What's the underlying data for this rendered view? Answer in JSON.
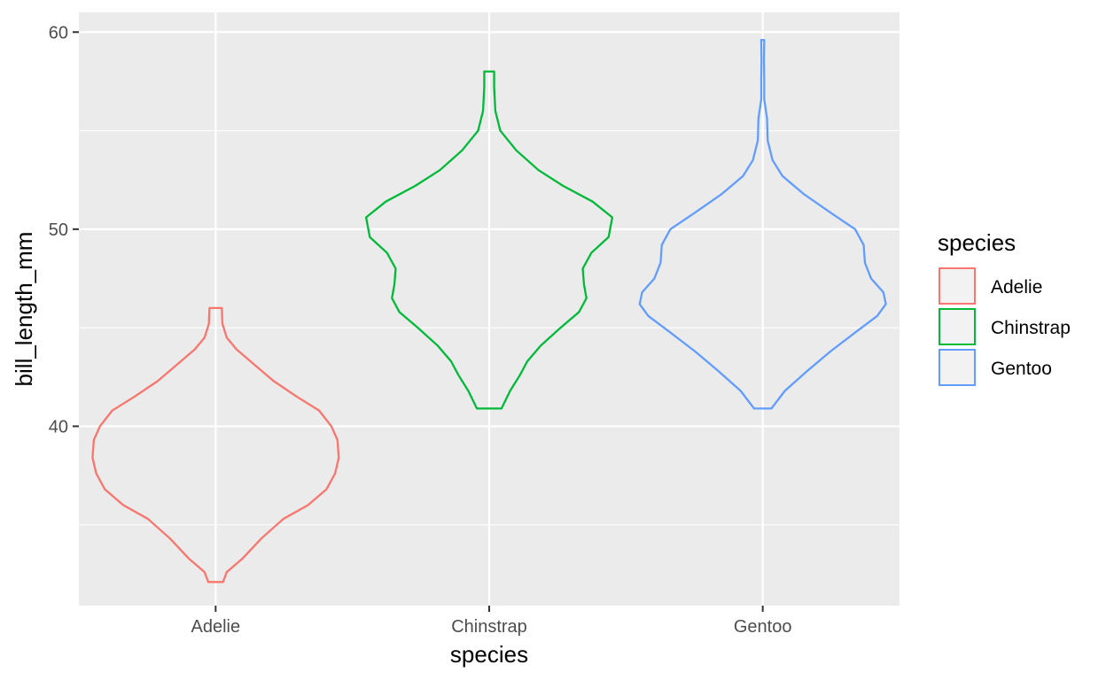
{
  "chart_data": {
    "type": "violin",
    "title": "",
    "xlabel": "species",
    "ylabel": "bill_length_mm",
    "categories": [
      "Adelie",
      "Chinstrap",
      "Gentoo"
    ],
    "ylim": [
      30.9,
      61.0
    ],
    "yticks": [
      40,
      50,
      60
    ],
    "y_tick_labels": [
      "40",
      "50",
      "60"
    ],
    "grid": true,
    "legend": {
      "title": "species",
      "placement": "right",
      "entries": [
        "Adelie",
        "Chinstrap",
        "Gentoo"
      ]
    },
    "colors": {
      "Adelie": "#F8766D",
      "Chinstrap": "#00BA38",
      "Gentoo": "#619CFF"
    },
    "series": [
      {
        "name": "Adelie",
        "range": [
          32.1,
          46.0
        ],
        "profile": [
          [
            32.1,
            0.06
          ],
          [
            32.6,
            0.09
          ],
          [
            33.3,
            0.22
          ],
          [
            34.3,
            0.37
          ],
          [
            35.3,
            0.55
          ],
          [
            36.0,
            0.75
          ],
          [
            36.8,
            0.9
          ],
          [
            37.6,
            0.97
          ],
          [
            38.4,
            1.0
          ],
          [
            39.3,
            0.99
          ],
          [
            40.0,
            0.94
          ],
          [
            40.8,
            0.84
          ],
          [
            41.5,
            0.66
          ],
          [
            42.3,
            0.47
          ],
          [
            43.1,
            0.32
          ],
          [
            43.9,
            0.17
          ],
          [
            44.5,
            0.09
          ],
          [
            45.2,
            0.055
          ],
          [
            46.0,
            0.05
          ]
        ]
      },
      {
        "name": "Chinstrap",
        "range": [
          40.9,
          58.0
        ],
        "profile": [
          [
            40.9,
            0.1
          ],
          [
            41.8,
            0.17
          ],
          [
            42.6,
            0.25
          ],
          [
            43.3,
            0.31
          ],
          [
            44.1,
            0.42
          ],
          [
            45.0,
            0.58
          ],
          [
            45.8,
            0.73
          ],
          [
            46.5,
            0.79
          ],
          [
            47.2,
            0.77
          ],
          [
            48.0,
            0.76
          ],
          [
            48.8,
            0.83
          ],
          [
            49.6,
            0.97
          ],
          [
            50.6,
            1.0
          ],
          [
            51.4,
            0.84
          ],
          [
            52.2,
            0.6
          ],
          [
            53.0,
            0.4
          ],
          [
            54.0,
            0.22
          ],
          [
            55.0,
            0.09
          ],
          [
            56.0,
            0.05
          ],
          [
            57.2,
            0.04
          ],
          [
            58.0,
            0.04
          ]
        ]
      },
      {
        "name": "Gentoo",
        "range": [
          40.9,
          59.6
        ],
        "profile": [
          [
            40.9,
            0.07
          ],
          [
            41.8,
            0.18
          ],
          [
            42.8,
            0.36
          ],
          [
            43.8,
            0.55
          ],
          [
            44.8,
            0.76
          ],
          [
            45.6,
            0.93
          ],
          [
            46.2,
            1.0
          ],
          [
            46.8,
            0.98
          ],
          [
            47.5,
            0.88
          ],
          [
            48.3,
            0.83
          ],
          [
            49.2,
            0.82
          ],
          [
            50.0,
            0.75
          ],
          [
            50.8,
            0.56
          ],
          [
            51.8,
            0.33
          ],
          [
            52.7,
            0.16
          ],
          [
            53.5,
            0.08
          ],
          [
            54.5,
            0.04
          ],
          [
            55.6,
            0.035
          ],
          [
            56.6,
            0.012
          ],
          [
            57.6,
            0.012
          ],
          [
            58.6,
            0.01
          ],
          [
            59.6,
            0.012
          ]
        ]
      }
    ]
  }
}
